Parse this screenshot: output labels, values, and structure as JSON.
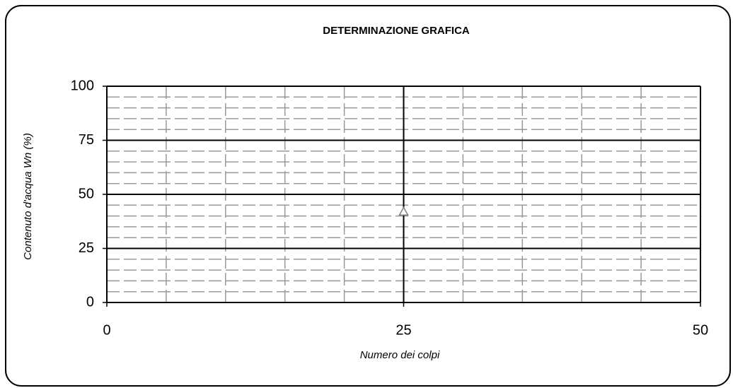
{
  "chart_data": {
    "type": "scatter",
    "title": "DETERMINAZIONE GRAFICA",
    "x_label": "Numero dei colpi",
    "y_label": "Contenuto d'acqua Wn (%)",
    "x": [
      25
    ],
    "values": [
      42
    ],
    "color": "#808080",
    "marker": "triangle",
    "xlim": [
      0,
      50
    ],
    "xticks": [
      0,
      25,
      50
    ],
    "ylim": [
      0,
      100
    ],
    "yticks": [
      0,
      25,
      50,
      75,
      100
    ],
    "xminorticks": [
      5,
      10,
      15,
      20,
      30,
      35,
      40,
      45
    ],
    "yminorticks": [
      5,
      10,
      15,
      20,
      30,
      35,
      40,
      45,
      55,
      60,
      65,
      70,
      80,
      85,
      90,
      95
    ],
    "grid": true
  }
}
